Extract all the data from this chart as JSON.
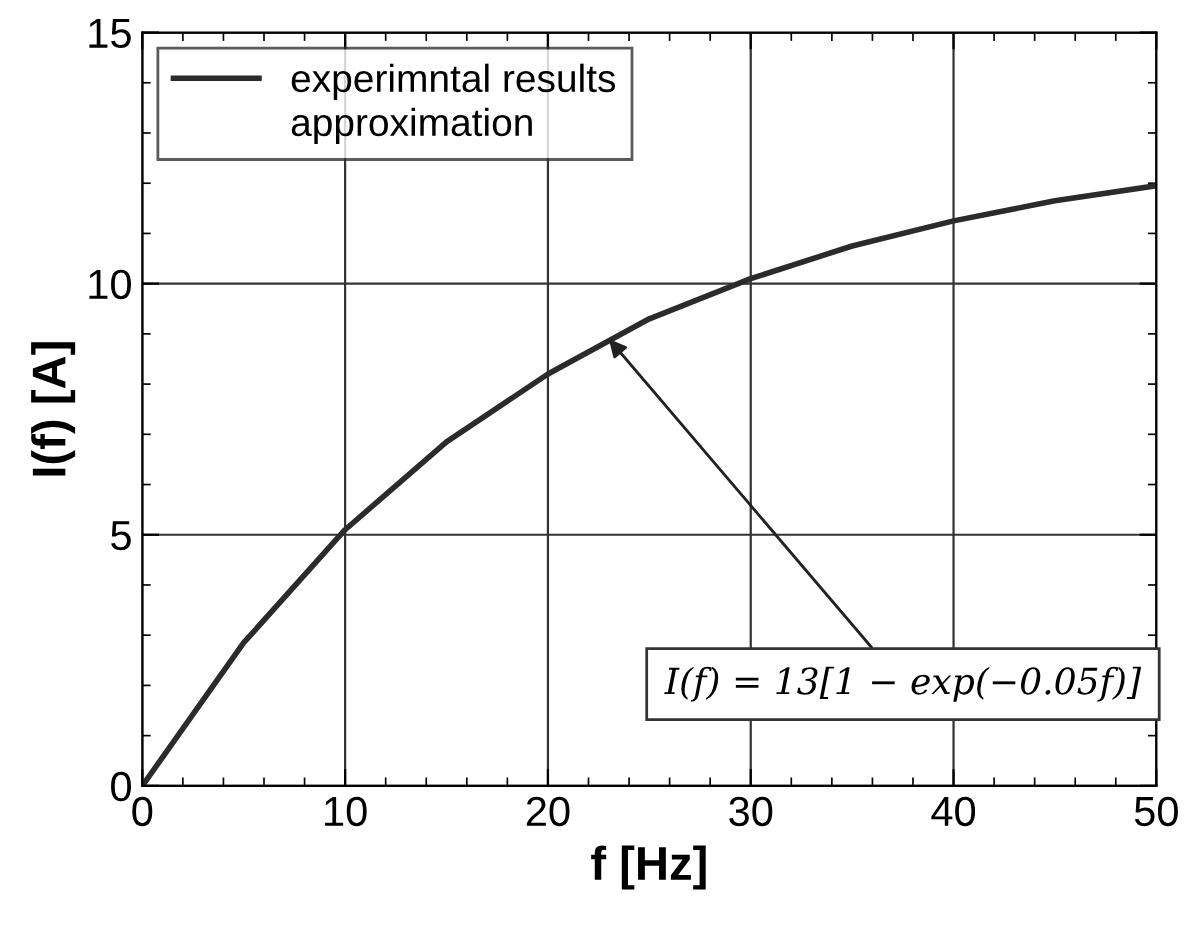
{
  "chart_data": {
    "type": "line",
    "xlabel": "f [Hz]",
    "ylabel": "I(f) [A]",
    "x": [
      0,
      5,
      10,
      15,
      20,
      25,
      30,
      35,
      40,
      45,
      50
    ],
    "series": [
      {
        "name": "experimntal results",
        "color": "#2b2b2b",
        "values": [
          0,
          2.85,
          5.1,
          6.85,
          8.2,
          9.3,
          10.1,
          10.75,
          11.25,
          11.65,
          11.95
        ]
      },
      {
        "name": "approximation",
        "values": [
          null,
          null,
          null,
          null,
          null,
          null,
          null,
          null,
          null,
          null,
          null
        ]
      }
    ],
    "xlim": [
      0,
      50
    ],
    "xticks": [
      0,
      10,
      20,
      30,
      40,
      50
    ],
    "ylim": [
      0,
      15
    ],
    "yticks": [
      0,
      5,
      10,
      15
    ],
    "grid": true,
    "legend": "top left",
    "marker": "none",
    "line_style": "solid",
    "annotations": [
      {
        "text": "I(f) = 13[1 − exp(−0.05f)]",
        "x": 23,
        "y": 8.9
      }
    ]
  }
}
